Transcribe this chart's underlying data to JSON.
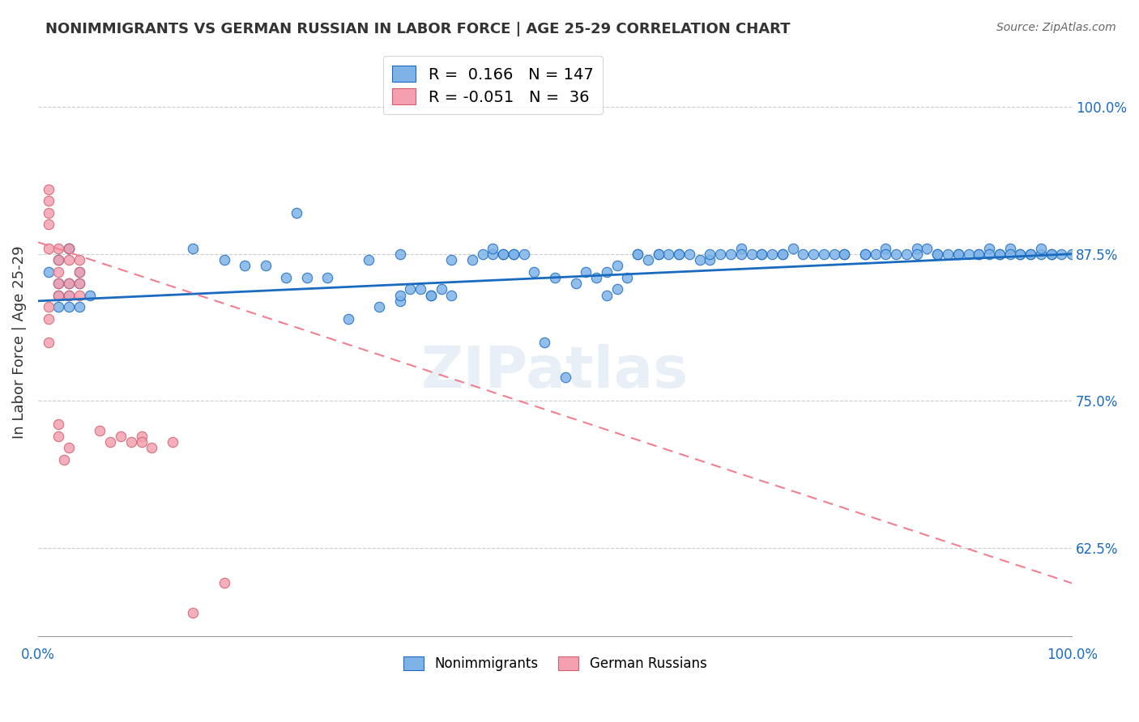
{
  "title": "NONIMMIGRANTS VS GERMAN RUSSIAN IN LABOR FORCE | AGE 25-29 CORRELATION CHART",
  "source": "Source: ZipAtlas.com",
  "ylabel": "In Labor Force | Age 25-29",
  "right_yticks": [
    "62.5%",
    "75.0%",
    "87.5%",
    "100.0%"
  ],
  "right_ytick_vals": [
    0.625,
    0.75,
    0.875,
    1.0
  ],
  "xlim": [
    0.0,
    1.0
  ],
  "ylim": [
    0.55,
    1.05
  ],
  "blue_R": 0.166,
  "blue_N": 147,
  "pink_R": -0.051,
  "pink_N": 36,
  "blue_color": "#7fb3e8",
  "pink_color": "#f4a0b0",
  "blue_line_color": "#1a6bbf",
  "pink_line_color": "#f08090",
  "pink_edge_color": "#d06070",
  "watermark": "ZIPatlas",
  "legend_label_blue": "Nonimmigrants",
  "legend_label_pink": "German Russians",
  "blue_scatter_x": [
    0.02,
    0.03,
    0.04,
    0.05,
    0.02,
    0.03,
    0.04,
    0.02,
    0.03,
    0.01,
    0.03,
    0.02,
    0.03,
    0.04,
    0.25,
    0.32,
    0.35,
    0.4,
    0.42,
    0.43,
    0.44,
    0.45,
    0.46,
    0.47,
    0.44,
    0.45,
    0.46,
    0.3,
    0.33,
    0.35,
    0.38,
    0.36,
    0.38,
    0.4,
    0.52,
    0.53,
    0.54,
    0.55,
    0.56,
    0.57,
    0.58,
    0.59,
    0.6,
    0.61,
    0.62,
    0.63,
    0.64,
    0.65,
    0.55,
    0.56,
    0.67,
    0.68,
    0.69,
    0.7,
    0.71,
    0.72,
    0.73,
    0.74,
    0.75,
    0.76,
    0.77,
    0.78,
    0.65,
    0.66,
    0.8,
    0.81,
    0.82,
    0.83,
    0.84,
    0.85,
    0.86,
    0.87,
    0.88,
    0.89,
    0.9,
    0.91,
    0.92,
    0.93,
    0.94,
    0.95,
    0.96,
    0.97,
    0.98,
    0.99,
    1.0,
    0.91,
    0.93,
    0.95,
    0.97,
    0.15,
    0.18,
    0.2,
    0.22,
    0.24,
    0.26,
    0.28,
    0.48,
    0.5,
    0.49,
    0.51,
    0.35,
    0.37,
    0.39,
    0.6,
    0.62,
    0.58,
    0.7,
    0.72,
    0.68,
    0.8,
    0.82,
    0.78,
    0.85,
    0.87,
    0.89,
    0.92,
    0.94,
    0.96,
    0.98
  ],
  "blue_scatter_y": [
    0.83,
    0.85,
    0.86,
    0.84,
    0.87,
    0.88,
    0.85,
    0.84,
    0.83,
    0.86,
    0.88,
    0.85,
    0.84,
    0.83,
    0.91,
    0.87,
    0.875,
    0.87,
    0.87,
    0.875,
    0.875,
    0.875,
    0.875,
    0.875,
    0.88,
    0.875,
    0.875,
    0.82,
    0.83,
    0.835,
    0.84,
    0.845,
    0.84,
    0.84,
    0.85,
    0.86,
    0.855,
    0.86,
    0.865,
    0.855,
    0.875,
    0.87,
    0.875,
    0.875,
    0.875,
    0.875,
    0.87,
    0.87,
    0.84,
    0.845,
    0.875,
    0.88,
    0.875,
    0.875,
    0.875,
    0.875,
    0.88,
    0.875,
    0.875,
    0.875,
    0.875,
    0.875,
    0.875,
    0.875,
    0.875,
    0.875,
    0.88,
    0.875,
    0.875,
    0.88,
    0.88,
    0.875,
    0.875,
    0.875,
    0.875,
    0.875,
    0.88,
    0.875,
    0.88,
    0.875,
    0.875,
    0.875,
    0.875,
    0.875,
    0.875,
    0.875,
    0.875,
    0.875,
    0.88,
    0.88,
    0.87,
    0.865,
    0.865,
    0.855,
    0.855,
    0.855,
    0.86,
    0.855,
    0.8,
    0.77,
    0.84,
    0.845,
    0.845,
    0.875,
    0.875,
    0.875,
    0.875,
    0.875,
    0.875,
    0.875,
    0.875,
    0.875,
    0.875,
    0.875,
    0.875,
    0.875,
    0.875,
    0.875,
    0.875
  ],
  "pink_scatter_x": [
    0.01,
    0.01,
    0.01,
    0.01,
    0.01,
    0.02,
    0.02,
    0.02,
    0.02,
    0.02,
    0.03,
    0.03,
    0.03,
    0.03,
    0.04,
    0.04,
    0.04,
    0.04,
    0.01,
    0.01,
    0.01,
    0.02,
    0.02,
    0.025,
    0.03,
    0.06,
    0.07,
    0.08,
    0.09,
    0.1,
    0.1,
    0.11,
    0.13,
    0.15,
    0.18
  ],
  "pink_scatter_y": [
    0.9,
    0.92,
    0.93,
    0.91,
    0.88,
    0.88,
    0.87,
    0.86,
    0.85,
    0.84,
    0.88,
    0.87,
    0.85,
    0.84,
    0.87,
    0.86,
    0.85,
    0.84,
    0.83,
    0.82,
    0.8,
    0.73,
    0.72,
    0.7,
    0.71,
    0.725,
    0.715,
    0.72,
    0.715,
    0.72,
    0.715,
    0.71,
    0.715,
    0.57,
    0.595
  ],
  "blue_trend_x": [
    0.0,
    1.0
  ],
  "blue_trend_y": [
    0.835,
    0.875
  ],
  "pink_trend_x": [
    0.0,
    1.0
  ],
  "pink_trend_y": [
    0.885,
    0.595
  ],
  "axis_label_color": "#1a6bbf",
  "grid_color": "#cccccc",
  "spine_color": "#999999"
}
